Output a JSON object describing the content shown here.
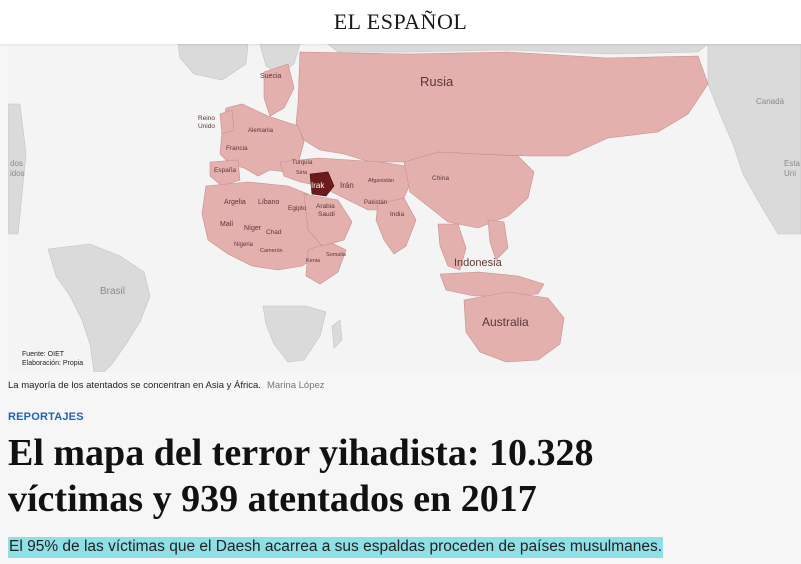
{
  "masthead": {
    "logo_text": "EL ESPAÑOL"
  },
  "map": {
    "highlight_color": "#e3b0ae",
    "focus_color": "#6b1b1b",
    "labels": {
      "rusia": "Rusia",
      "canada": "Canadá",
      "estados_left": "dos",
      "estados_left2": "idos",
      "estados_right": "Esta",
      "estados_right2": "Uni",
      "suecia": "Suecia",
      "reino_unido_1": "Reino",
      "reino_unido_2": "Unido",
      "alemania": "Alemania",
      "francia": "Francia",
      "espana": "España",
      "turquia": "Turquía",
      "siria": "Siria",
      "irak": "Irak",
      "iran": "Irán",
      "afganistan": "Afganistán",
      "pakistan": "Pakistán",
      "china": "China",
      "india": "India",
      "argelia": "Argelia",
      "libano": "Líbano",
      "egipto": "Egipto",
      "arabia_1": "Arabia",
      "arabia_2": "Saudí",
      "mali": "Malí",
      "niger": "Níger",
      "chad": "Chad",
      "nigeria": "Nigeria",
      "camerun": "Camerún",
      "kenia": "Kenia",
      "somalia": "Somalia",
      "indonesia": "Indonesia",
      "brasil": "Brasil",
      "australia": "Australia"
    },
    "source_line": "Fuente: OIET",
    "author_line": "Elaboración: Propia"
  },
  "caption": {
    "text": "La mayoría de los atentados se concentran en Asia y África.",
    "credit": "Marina López"
  },
  "article": {
    "section": "REPORTAJES",
    "headline_line1": "El mapa del terror yihadista: 10.328",
    "headline_line2": "víctimas y 939 atentados en 2017",
    "subtitle": "El 95% de las víctimas que el Daesh acarrea a sus espaldas proceden de países musulmanes."
  }
}
